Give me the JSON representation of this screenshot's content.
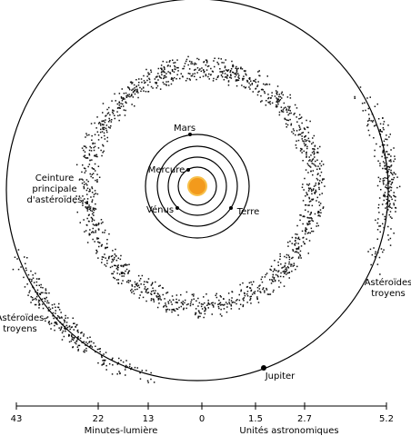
{
  "bodies": [
    "Mars",
    "Mercure",
    "Vénus",
    "Terre",
    "Jupiter"
  ],
  "main_belt": [
    "Ceinture",
    "principale",
    "d'astéroïdes"
  ],
  "trojans_left": [
    "Astéroïdes",
    "troyens"
  ],
  "trojans_right": [
    "Astéroïdes",
    "troyens"
  ],
  "scale": {
    "ticks": [
      "43",
      "22",
      "13",
      "0",
      "1.5",
      "2.7",
      "5.2"
    ],
    "left_unit": "Minutes-lumière",
    "right_unit": "Unités astronomiques"
  }
}
